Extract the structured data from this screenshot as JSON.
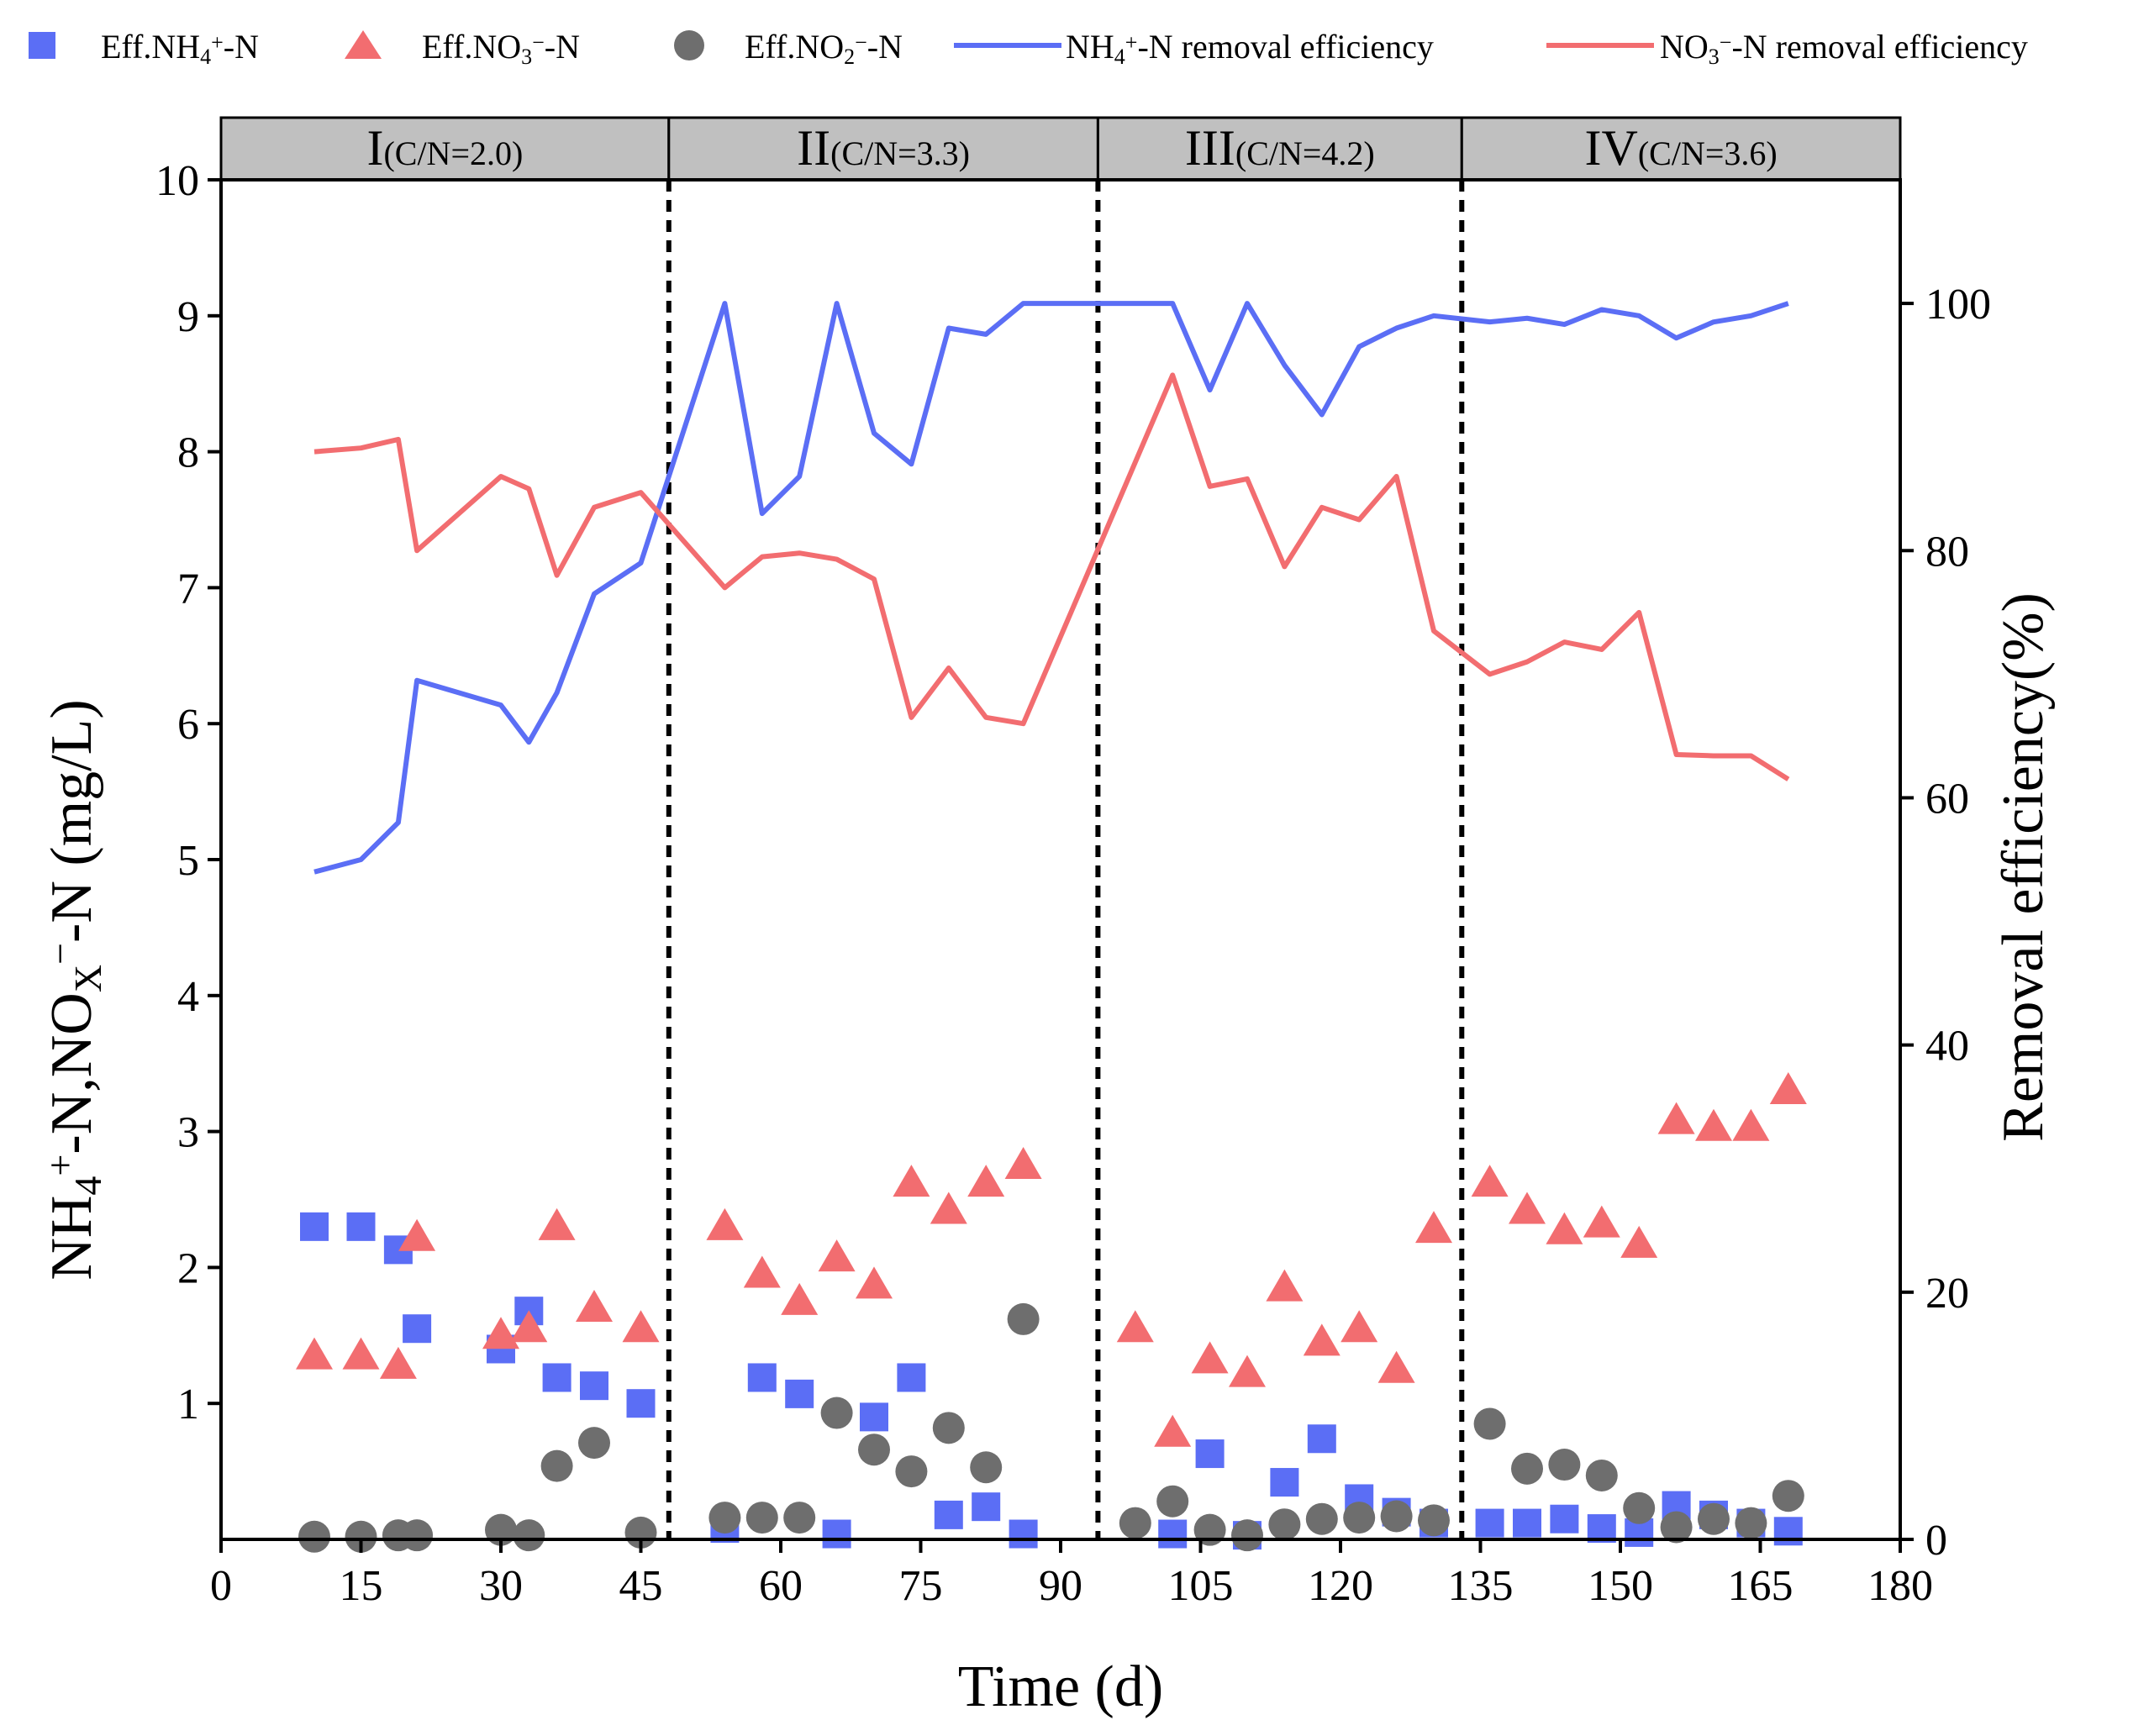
{
  "chart_data": {
    "type": "scatter+line",
    "xlabel": "Time (d)",
    "ylabel_left": {
      "main": "NH",
      "sub1": "4",
      "sup1": "+",
      "mid": "-N,NO",
      "sub2": "X",
      "sup2": "−",
      "end": "-N (mg/L)"
    },
    "ylabel_right": "Removal efficiency(%)",
    "xlim": [
      0,
      180
    ],
    "ylim_left": [
      0,
      10
    ],
    "ylim_right": [
      0,
      110
    ],
    "x_ticks": [
      "0",
      "15",
      "30",
      "45",
      "60",
      "75",
      "90",
      "105",
      "120",
      "135",
      "150",
      "165",
      "180"
    ],
    "y_left_ticks": [
      "1",
      "2",
      "3",
      "4",
      "5",
      "6",
      "7",
      "8",
      "9",
      "10"
    ],
    "y_right_ticks": [
      "0",
      "20",
      "40",
      "60",
      "80",
      "100"
    ],
    "phase_boundaries": [
      48,
      94,
      133
    ],
    "phases": [
      {
        "roman": "I",
        "cn": "(C/N=2.0)"
      },
      {
        "roman": "II",
        "cn": "(C/N=3.3)"
      },
      {
        "roman": "III",
        "cn": "(C/N=4.2)"
      },
      {
        "roman": "IV",
        "cn": "(C/N=3.6)"
      }
    ],
    "legend": {
      "eff_nh4": {
        "pre": "Eff.NH",
        "sub": "4",
        "sup": "+",
        "post": "-N"
      },
      "eff_no3": {
        "pre": "Eff.NO",
        "sub": "3",
        "sup": "−",
        "post": "-N"
      },
      "eff_no2": {
        "pre": "Eff.NO",
        "sub": "2",
        "sup": "−",
        "post": "-N"
      },
      "nh4_removal": {
        "pre": "NH",
        "sub": "4",
        "sup": "+",
        "post": "-N removal efficiency"
      },
      "no3_removal": {
        "pre": "NO",
        "sub": "3",
        "sup": "−",
        "post": "-N removal efficiency"
      }
    },
    "colors": {
      "nh4": "#5b6ef5",
      "no3": "#f26d70",
      "no2": "#6e6e6e",
      "phase_band": "#c0c0c0"
    },
    "series": [
      {
        "name": "Eff.NH4+-N",
        "axis": "left",
        "marker": "square",
        "color": "#5b6ef5",
        "x": [
          10,
          15,
          19,
          21,
          30,
          33,
          36,
          40,
          45,
          54,
          58,
          62,
          66,
          70,
          74,
          78,
          82,
          86,
          102,
          106,
          110,
          114,
          118,
          122,
          126,
          130,
          136,
          140,
          144,
          148,
          152,
          156,
          160,
          164,
          168
        ],
        "y": [
          2.3,
          2.3,
          2.13,
          1.55,
          1.4,
          1.68,
          1.19,
          1.13,
          1.0,
          0.08,
          1.19,
          1.07,
          0.04,
          0.9,
          1.19,
          0.18,
          0.24,
          0.04,
          0.04,
          0.63,
          0.03,
          0.42,
          0.74,
          0.3,
          0.2,
          0.12,
          0.12,
          0.12,
          0.15,
          0.08,
          0.05,
          0.25,
          0.18,
          0.12,
          0.06
        ]
      },
      {
        "name": "Eff.NO3−-N",
        "axis": "left",
        "marker": "triangle",
        "color": "#f26d70",
        "x": [
          10,
          15,
          19,
          21,
          30,
          33,
          36,
          40,
          45,
          54,
          58,
          62,
          66,
          70,
          74,
          78,
          82,
          86,
          98,
          102,
          106,
          110,
          114,
          118,
          122,
          126,
          130,
          136,
          140,
          144,
          148,
          152,
          156,
          160,
          164,
          168
        ],
        "y": [
          1.35,
          1.35,
          1.28,
          2.22,
          1.5,
          1.55,
          2.3,
          1.7,
          1.55,
          2.3,
          1.95,
          1.75,
          2.07,
          1.87,
          2.62,
          2.42,
          2.62,
          2.75,
          1.55,
          0.78,
          1.32,
          1.22,
          1.85,
          1.45,
          1.55,
          1.25,
          2.28,
          2.62,
          2.42,
          2.27,
          2.32,
          2.17,
          3.08,
          3.03,
          3.03,
          3.3
        ]
      },
      {
        "name": "Eff.NO2−-N",
        "axis": "left",
        "marker": "circle",
        "color": "#6e6e6e",
        "x": [
          10,
          15,
          19,
          21,
          30,
          33,
          36,
          40,
          45,
          54,
          58,
          62,
          66,
          70,
          74,
          78,
          82,
          86,
          98,
          102,
          106,
          110,
          114,
          118,
          122,
          126,
          130,
          136,
          140,
          144,
          148,
          152,
          156,
          160,
          164,
          168
        ],
        "y": [
          0.02,
          0.02,
          0.03,
          0.03,
          0.07,
          0.03,
          0.54,
          0.71,
          0.05,
          0.16,
          0.16,
          0.16,
          0.93,
          0.66,
          0.5,
          0.82,
          0.53,
          1.62,
          0.12,
          0.28,
          0.07,
          0.03,
          0.11,
          0.15,
          0.16,
          0.17,
          0.14,
          0.85,
          0.52,
          0.55,
          0.47,
          0.23,
          0.09,
          0.15,
          0.12,
          0.32
        ]
      },
      {
        "name": "NH4+-N removal efficiency",
        "axis": "right",
        "marker": "line",
        "color": "#5b6ef5",
        "x": [
          10,
          15,
          19,
          21,
          30,
          33,
          36,
          40,
          45,
          54,
          58,
          62,
          66,
          70,
          74,
          78,
          82,
          86,
          90,
          94,
          98,
          102,
          106,
          110,
          114,
          118,
          122,
          126,
          130,
          136,
          140,
          144,
          148,
          152,
          156,
          160,
          164,
          168
        ],
        "y": [
          54,
          55,
          58,
          69.5,
          67.5,
          64.5,
          68.5,
          76.5,
          79,
          100,
          83,
          86,
          100,
          89.5,
          87,
          98,
          97.5,
          100,
          100,
          100,
          100,
          100,
          93,
          100,
          95,
          91,
          96.5,
          98,
          99,
          98.5,
          98.8,
          98.3,
          99.5,
          99,
          97.2,
          98.5,
          99,
          100
        ]
      },
      {
        "name": "NO3−-N removal efficiency",
        "axis": "right",
        "marker": "line",
        "color": "#f26d70",
        "x": [
          10,
          15,
          19,
          21,
          30,
          33,
          36,
          40,
          45,
          54,
          58,
          62,
          66,
          70,
          74,
          78,
          82,
          86,
          102,
          106,
          110,
          114,
          118,
          122,
          126,
          130,
          136,
          140,
          144,
          148,
          152,
          156,
          160,
          164,
          168
        ],
        "y": [
          88,
          88.3,
          89,
          80,
          86,
          85,
          78,
          83.5,
          84.7,
          77,
          79.5,
          79.8,
          79.3,
          77.7,
          66.5,
          70.5,
          66.5,
          66,
          94.2,
          85.2,
          85.8,
          78.7,
          83.5,
          82.5,
          86,
          73.5,
          70,
          71,
          72.6,
          72,
          75,
          63.5,
          63.4,
          63.4,
          61.5
        ]
      }
    ]
  }
}
